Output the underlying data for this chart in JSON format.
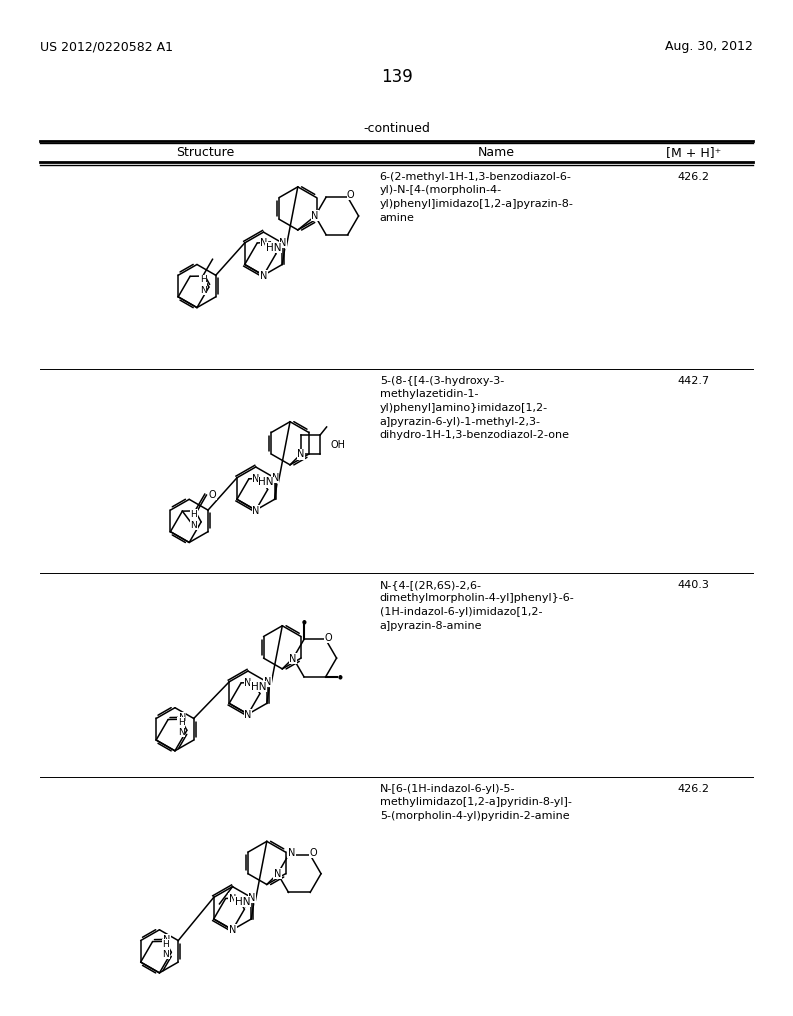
{
  "page_number": "139",
  "patent_number": "US 2012/0220582 A1",
  "patent_date": "Aug. 30, 2012",
  "continued_label": "-continued",
  "col_headers": [
    "Structure",
    "Name",
    "[M + H]⁺"
  ],
  "rows": [
    {
      "name": "6-(2-methyl-1H-1,3-benzodiazol-6-\nyl)-N-[4-(morpholin-4-\nyl)phenyl]imidazo[1,2-a]pyrazin-8-\namine",
      "mh": "426.2"
    },
    {
      "name": "5-(8-{[4-(3-hydroxy-3-\nmethylazetidin-1-\nyl)phenyl]amino}imidazo[1,2-\na]pyrazin-6-yl)-1-methyl-2,3-\ndihydro-1H-1,3-benzodiazol-2-one",
      "mh": "442.7"
    },
    {
      "name": "N-{4-[(2R,6S)-2,6-\ndimethylmorpholin-4-yl]phenyl}-6-\n(1H-indazol-6-yl)imidazo[1,2-\na]pyrazin-8-amine",
      "mh": "440.3"
    },
    {
      "name": "N-[6-(1H-indazol-6-yl)-5-\nmethylimidazo[1,2-a]pyridin-8-yl]-\n5-(morpholin-4-yl)pyridin-2-amine",
      "mh": "426.2"
    }
  ],
  "bg_color": "#ffffff",
  "text_color": "#000000",
  "line_color": "#000000"
}
